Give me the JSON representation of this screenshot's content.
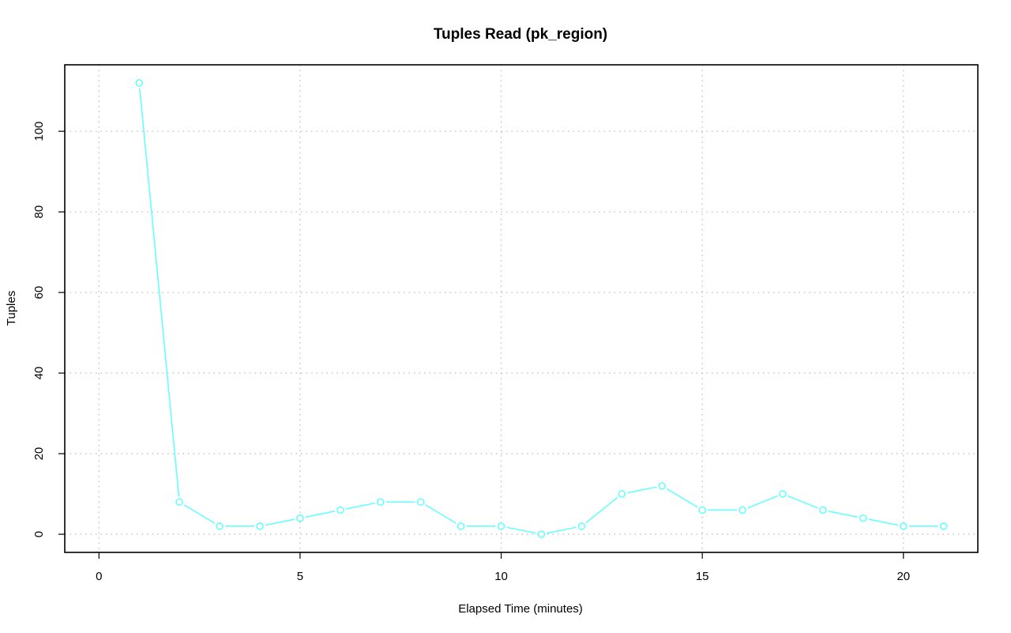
{
  "chart_data": {
    "type": "line",
    "title": "Tuples Read (pk_region)",
    "xlabel": "Elapsed Time (minutes)",
    "ylabel": "Tuples",
    "xlim": [
      -0.85,
      21.85
    ],
    "ylim": [
      -4.5,
      116.5
    ],
    "x_ticks": [
      0,
      5,
      10,
      15,
      20
    ],
    "y_ticks": [
      0,
      20,
      40,
      60,
      80,
      100
    ],
    "grid": true,
    "series": [
      {
        "color": "#66ffff",
        "x": [
          1,
          2,
          3,
          4,
          5,
          6,
          7,
          8,
          9,
          10,
          11,
          12,
          13,
          14,
          15,
          16,
          17,
          18,
          19,
          20,
          21
        ],
        "y": [
          112,
          8,
          2,
          2,
          4,
          6,
          8,
          8,
          2,
          2,
          0,
          2,
          10,
          12,
          6,
          6,
          10,
          6,
          4,
          2,
          2
        ]
      }
    ]
  }
}
